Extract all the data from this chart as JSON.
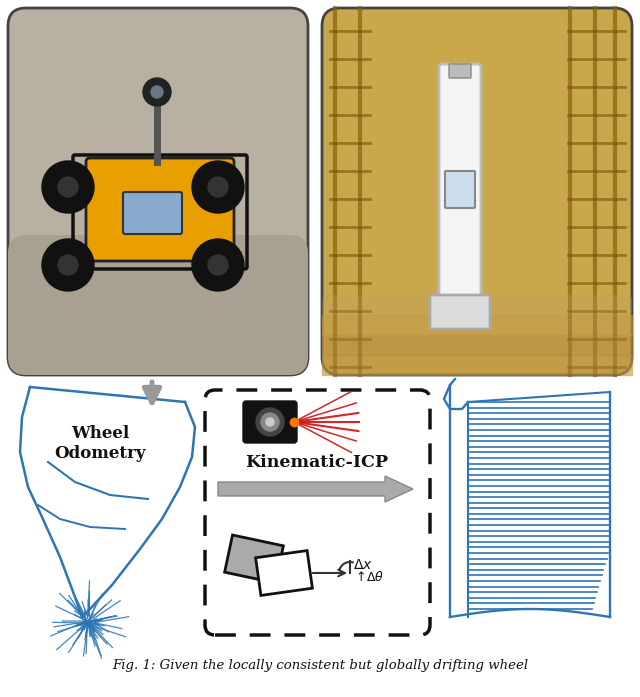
{
  "background_color": "#ffffff",
  "blue_color": "#2e75b6",
  "caption": "Fig. 1: Given the locally consistent but globally drifting wheel"
}
